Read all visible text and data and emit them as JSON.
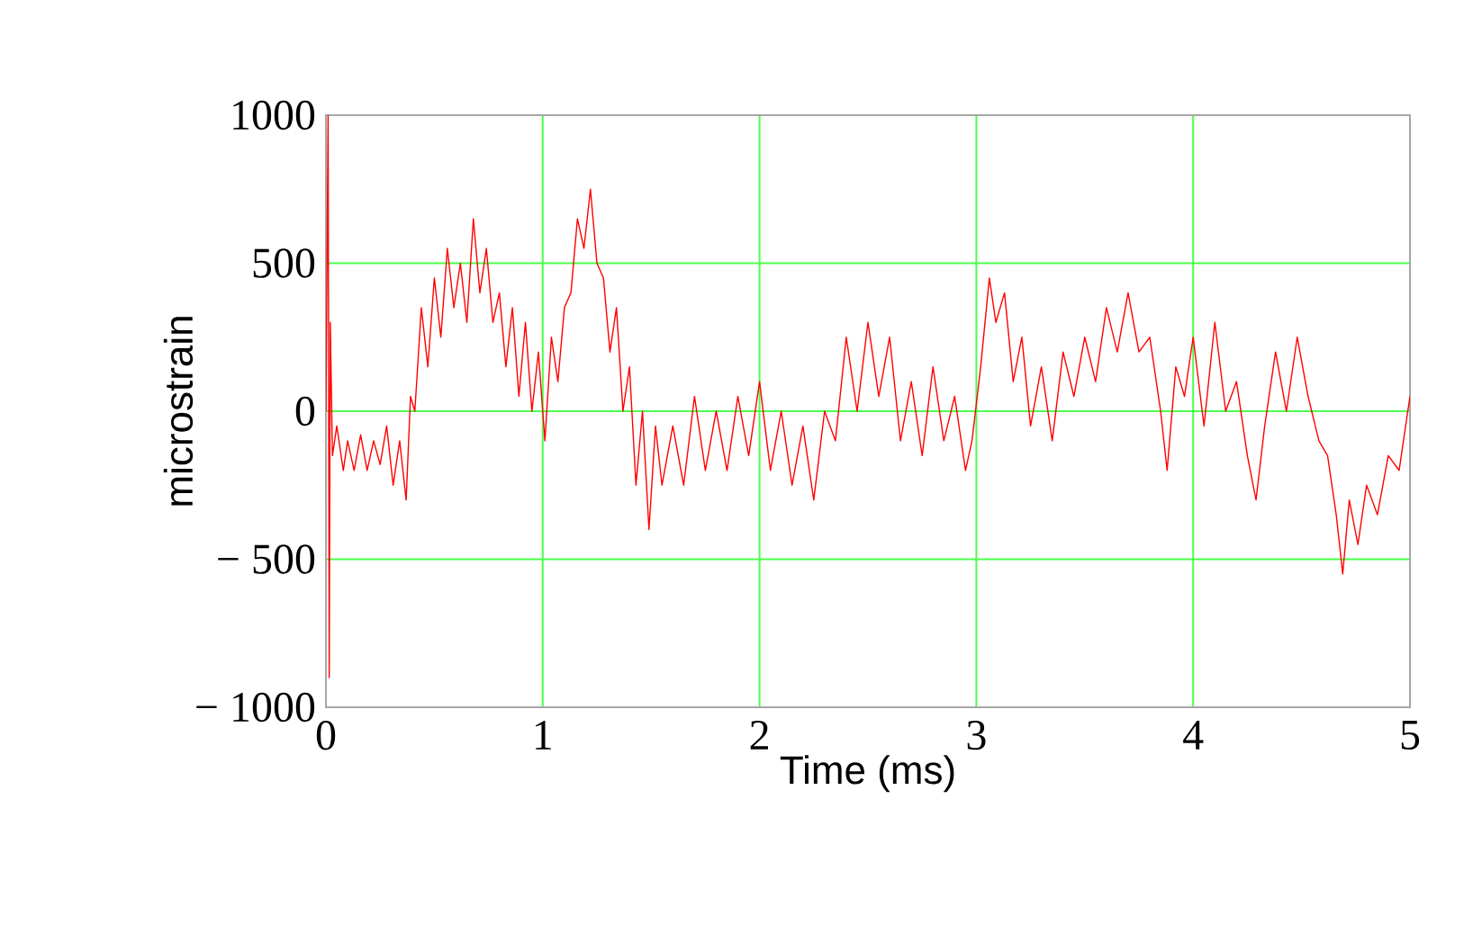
{
  "chart_data": {
    "type": "line",
    "xlabel": "Time (ms)",
    "ylabel": "microstrain",
    "xlim": [
      0,
      5
    ],
    "ylim": [
      -1000,
      1000
    ],
    "xticks": [
      0,
      1,
      2,
      3,
      4,
      5
    ],
    "yticks": [
      {
        "value": -1000,
        "label": "− 1000"
      },
      {
        "value": -500,
        "label": "− 500"
      },
      0,
      500,
      1000
    ],
    "grid": true,
    "marker": "none",
    "line_style": "solid",
    "series": [
      {
        "color": "#ff0000",
        "x": [
          0.0,
          0.01,
          0.015,
          0.02,
          0.03,
          0.05,
          0.08,
          0.1,
          0.13,
          0.16,
          0.19,
          0.22,
          0.25,
          0.28,
          0.31,
          0.34,
          0.37,
          0.39,
          0.41,
          0.44,
          0.47,
          0.5,
          0.53,
          0.56,
          0.59,
          0.62,
          0.65,
          0.68,
          0.71,
          0.74,
          0.77,
          0.8,
          0.83,
          0.86,
          0.89,
          0.92,
          0.95,
          0.98,
          1.01,
          1.04,
          1.07,
          1.1,
          1.13,
          1.16,
          1.19,
          1.22,
          1.25,
          1.28,
          1.31,
          1.34,
          1.37,
          1.4,
          1.43,
          1.46,
          1.49,
          1.52,
          1.55,
          1.6,
          1.65,
          1.7,
          1.75,
          1.8,
          1.85,
          1.9,
          1.95,
          2.0,
          2.05,
          2.1,
          2.15,
          2.2,
          2.25,
          2.3,
          2.35,
          2.4,
          2.45,
          2.5,
          2.55,
          2.6,
          2.65,
          2.7,
          2.75,
          2.8,
          2.85,
          2.9,
          2.95,
          2.98,
          3.02,
          3.06,
          3.09,
          3.13,
          3.17,
          3.21,
          3.25,
          3.3,
          3.35,
          3.4,
          3.45,
          3.5,
          3.55,
          3.6,
          3.65,
          3.7,
          3.75,
          3.8,
          3.85,
          3.88,
          3.92,
          3.96,
          4.0,
          4.05,
          4.1,
          4.15,
          4.2,
          4.25,
          4.29,
          4.33,
          4.38,
          4.43,
          4.48,
          4.53,
          4.58,
          4.62,
          4.66,
          4.69,
          4.72,
          4.76,
          4.8,
          4.85,
          4.9,
          4.95,
          5.0
        ],
        "values": [
          0,
          1000,
          -900,
          300,
          -150,
          -50,
          -200,
          -100,
          -200,
          -80,
          -200,
          -100,
          -180,
          -50,
          -250,
          -100,
          -300,
          50,
          0,
          350,
          150,
          450,
          250,
          550,
          350,
          500,
          300,
          650,
          400,
          550,
          300,
          400,
          150,
          350,
          50,
          300,
          0,
          200,
          -100,
          250,
          100,
          350,
          400,
          650,
          550,
          750,
          500,
          450,
          200,
          350,
          0,
          150,
          -250,
          0,
          -400,
          -50,
          -250,
          -50,
          -250,
          50,
          -200,
          0,
          -200,
          50,
          -150,
          100,
          -200,
          0,
          -250,
          -50,
          -300,
          0,
          -100,
          250,
          0,
          300,
          50,
          250,
          -100,
          100,
          -150,
          150,
          -100,
          50,
          -200,
          -100,
          150,
          450,
          300,
          400,
          100,
          250,
          -50,
          150,
          -100,
          200,
          50,
          250,
          100,
          350,
          200,
          400,
          200,
          250,
          0,
          -200,
          150,
          50,
          250,
          -50,
          300,
          0,
          100,
          -150,
          -300,
          -50,
          200,
          0,
          250,
          50,
          -100,
          -150,
          -350,
          -550,
          -300,
          -450,
          -250,
          -350,
          -150,
          -200,
          50
        ]
      }
    ]
  }
}
